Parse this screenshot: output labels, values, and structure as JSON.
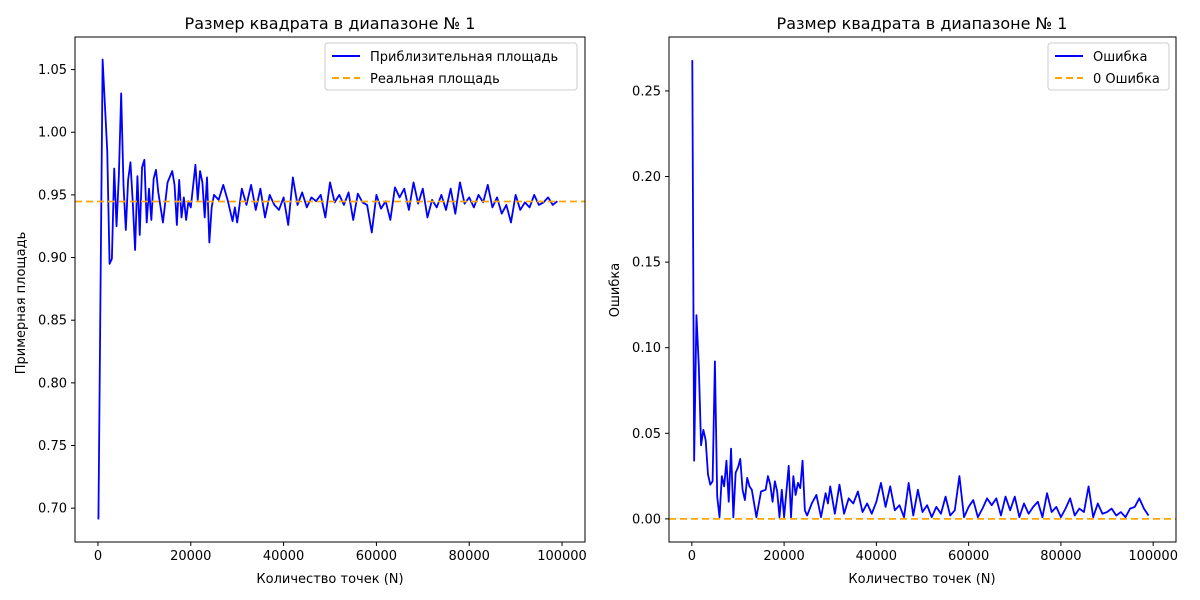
{
  "chart_data": [
    {
      "type": "line",
      "title": "Размер квадрата в диапазоне № 1",
      "xlabel": "Количество точек (N)",
      "ylabel": "Примерная площадь",
      "xlim": [
        -4950,
        104950
      ],
      "ylim": [
        0.673,
        1.076
      ],
      "xticks": [
        0,
        20000,
        40000,
        60000,
        80000,
        100000
      ],
      "xtick_labels": [
        "0",
        "20000",
        "40000",
        "60000",
        "80000",
        "100000"
      ],
      "yticks": [
        0.7,
        0.75,
        0.8,
        0.85,
        0.9,
        0.95,
        1.0,
        1.05
      ],
      "ytick_labels": [
        "0.70",
        "0.75",
        "0.80",
        "0.85",
        "0.90",
        "0.95",
        "1.00",
        "1.05"
      ],
      "grid": false,
      "legend_position": "top-right",
      "series": [
        {
          "name": "Приблизительная площадь",
          "style": "solid",
          "color": "#0000ff",
          "x": [
            100,
            1000,
            2000,
            2500,
            3000,
            3500,
            4000,
            4500,
            5000,
            5500,
            6000,
            6500,
            7000,
            7500,
            8000,
            8500,
            9000,
            9500,
            10000,
            10500,
            11000,
            11500,
            12000,
            12500,
            13000,
            14000,
            15000,
            16000,
            16500,
            17000,
            17500,
            18000,
            18500,
            19000,
            19500,
            20000,
            21000,
            21500,
            22000,
            22500,
            23000,
            23500,
            24000,
            24500,
            25000,
            26000,
            27000,
            28000,
            29000,
            29500,
            30000,
            31000,
            32000,
            33000,
            34000,
            35000,
            36000,
            37000,
            38000,
            39000,
            40000,
            41000,
            42000,
            43000,
            44000,
            45000,
            46000,
            47000,
            48000,
            49000,
            50000,
            51000,
            52000,
            53000,
            54000,
            55000,
            56000,
            57000,
            58000,
            59000,
            60000,
            61000,
            62000,
            63000,
            64000,
            65000,
            66000,
            67000,
            68000,
            69000,
            70000,
            71000,
            72000,
            73000,
            74000,
            75000,
            76000,
            77000,
            78000,
            79000,
            80000,
            81000,
            82000,
            83000,
            84000,
            85000,
            86000,
            87000,
            88000,
            89000,
            90000,
            91000,
            92000,
            93000,
            94000,
            95000,
            96000,
            97000,
            98000,
            99000
          ],
          "y": [
            0.691,
            1.058,
            0.985,
            0.895,
            0.899,
            0.971,
            0.925,
            0.965,
            1.031,
            0.958,
            0.922,
            0.962,
            0.976,
            0.944,
            0.906,
            0.965,
            0.918,
            0.972,
            0.978,
            0.928,
            0.955,
            0.93,
            0.963,
            0.97,
            0.952,
            0.928,
            0.96,
            0.969,
            0.958,
            0.926,
            0.962,
            0.932,
            0.948,
            0.93,
            0.945,
            0.94,
            0.974,
            0.946,
            0.969,
            0.96,
            0.932,
            0.964,
            0.912,
            0.94,
            0.95,
            0.946,
            0.958,
            0.945,
            0.929,
            0.94,
            0.928,
            0.955,
            0.942,
            0.958,
            0.938,
            0.955,
            0.932,
            0.95,
            0.942,
            0.938,
            0.948,
            0.926,
            0.964,
            0.942,
            0.952,
            0.94,
            0.948,
            0.945,
            0.95,
            0.932,
            0.96,
            0.944,
            0.95,
            0.942,
            0.952,
            0.93,
            0.951,
            0.944,
            0.942,
            0.92,
            0.95,
            0.939,
            0.945,
            0.93,
            0.956,
            0.948,
            0.955,
            0.938,
            0.96,
            0.943,
            0.955,
            0.932,
            0.946,
            0.94,
            0.95,
            0.938,
            0.955,
            0.935,
            0.96,
            0.943,
            0.948,
            0.94,
            0.95,
            0.944,
            0.958,
            0.94,
            0.948,
            0.935,
            0.942,
            0.928,
            0.95,
            0.938,
            0.944,
            0.94,
            0.95,
            0.942,
            0.944,
            0.948,
            0.942,
            0.945
          ]
        },
        {
          "name": "Реальная площадь",
          "style": "dashed",
          "color": "#ffa500",
          "y_const": 0.9447
        }
      ]
    },
    {
      "type": "line",
      "title": "Размер квадрата в диапазоне № 1",
      "xlabel": "Количество точек (N)",
      "ylabel": "Ошибка",
      "xlim": [
        -4950,
        104950
      ],
      "ylim": [
        -0.0135,
        0.2815
      ],
      "xticks": [
        0,
        20000,
        40000,
        60000,
        80000,
        100000
      ],
      "xtick_labels": [
        "0",
        "20000",
        "40000",
        "60000",
        "80000",
        "100000"
      ],
      "yticks": [
        0.0,
        0.05,
        0.1,
        0.15,
        0.2,
        0.25
      ],
      "ytick_labels": [
        "0.00",
        "0.05",
        "0.10",
        "0.15",
        "0.20",
        "0.25"
      ],
      "grid": false,
      "legend_position": "top-right",
      "series": [
        {
          "name": "Ошибка",
          "style": "solid",
          "color": "#0000ff",
          "x": [
            100,
            500,
            1000,
            1500,
            2000,
            2500,
            3000,
            3500,
            4000,
            4500,
            5000,
            5500,
            6000,
            6500,
            7000,
            7500,
            8000,
            8500,
            9000,
            9500,
            10000,
            10500,
            11000,
            11500,
            12000,
            12500,
            13000,
            14000,
            15000,
            16000,
            16500,
            17000,
            17500,
            18000,
            18500,
            19000,
            19500,
            20000,
            21000,
            21500,
            22000,
            22500,
            23000,
            23500,
            24000,
            24500,
            25000,
            26000,
            27000,
            28000,
            29000,
            29500,
            30000,
            31000,
            32000,
            33000,
            34000,
            35000,
            36000,
            37000,
            38000,
            39000,
            40000,
            41000,
            42000,
            43000,
            44000,
            45000,
            46000,
            47000,
            48000,
            49000,
            50000,
            51000,
            52000,
            53000,
            54000,
            55000,
            56000,
            57000,
            58000,
            59000,
            60000,
            61000,
            62000,
            63000,
            64000,
            65000,
            66000,
            67000,
            68000,
            69000,
            70000,
            71000,
            72000,
            73000,
            74000,
            75000,
            76000,
            77000,
            78000,
            79000,
            80000,
            81000,
            82000,
            83000,
            84000,
            85000,
            86000,
            87000,
            88000,
            89000,
            90000,
            91000,
            92000,
            93000,
            94000,
            95000,
            96000,
            97000,
            98000,
            99000
          ],
          "y": [
            0.268,
            0.034,
            0.119,
            0.09,
            0.043,
            0.052,
            0.046,
            0.026,
            0.02,
            0.022,
            0.092,
            0.013,
            0.001,
            0.025,
            0.019,
            0.034,
            0.01,
            0.041,
            0.001,
            0.027,
            0.03,
            0.035,
            0.017,
            0.011,
            0.024,
            0.019,
            0.017,
            0.001,
            0.016,
            0.017,
            0.025,
            0.02,
            0.01,
            0.022,
            0.016,
            0.001,
            0.017,
            0.001,
            0.031,
            0.001,
            0.025,
            0.014,
            0.021,
            0.018,
            0.034,
            0.005,
            0.002,
            0.009,
            0.014,
            0.001,
            0.015,
            0.009,
            0.019,
            0.003,
            0.02,
            0.003,
            0.012,
            0.009,
            0.016,
            0.004,
            0.009,
            0.003,
            0.01,
            0.021,
            0.007,
            0.019,
            0.005,
            0.008,
            0.001,
            0.021,
            0.002,
            0.017,
            0.004,
            0.008,
            0.001,
            0.007,
            0.003,
            0.013,
            0.002,
            0.005,
            0.025,
            0.001,
            0.007,
            0.011,
            0.001,
            0.006,
            0.012,
            0.008,
            0.012,
            0.002,
            0.013,
            0.005,
            0.013,
            0.001,
            0.009,
            0.003,
            0.007,
            0.01,
            0.001,
            0.015,
            0.004,
            0.007,
            0.001,
            0.006,
            0.012,
            0.002,
            0.006,
            0.004,
            0.019,
            0.001,
            0.009,
            0.003,
            0.004,
            0.006,
            0.002,
            0.004,
            0.001,
            0.006,
            0.007,
            0.012,
            0.006,
            0.002
          ]
        },
        {
          "name": "0 Ошибка",
          "style": "dashed",
          "color": "#ffa500",
          "y_const": 0
        }
      ]
    }
  ]
}
